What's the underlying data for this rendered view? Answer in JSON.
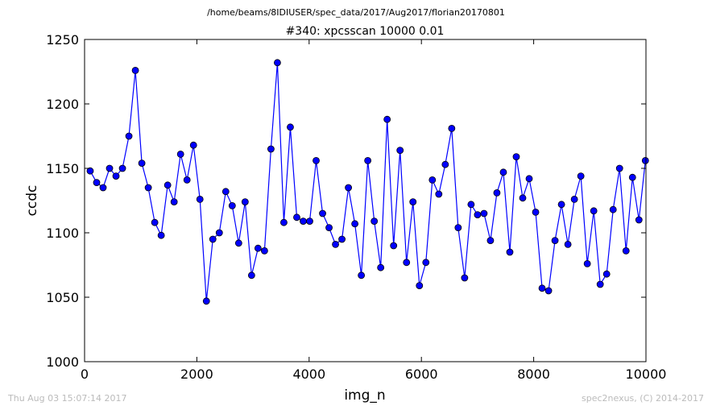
{
  "suptitle": "/home/beams/8IDIUSER/spec_data/2017/Aug2017/florian20170801",
  "footer": {
    "left": "Thu Aug 03 15:07:14 2017",
    "right": "spec2nexus, (C) 2014-2017"
  },
  "colors": {
    "series": "#0000ff",
    "marker_edge": "#000000",
    "axes": "#000000"
  },
  "chart_data": {
    "type": "line",
    "title": "#340: xpcsscan 10000 0.01",
    "xlabel": "img_n",
    "ylabel": "ccdc",
    "xlim": [
      0,
      10000
    ],
    "ylim": [
      1000,
      1250
    ],
    "xticks": [
      0,
      2000,
      4000,
      6000,
      8000,
      10000
    ],
    "yticks": [
      1000,
      1050,
      1100,
      1150,
      1200,
      1250
    ],
    "grid": false,
    "legend": "none",
    "series": [
      {
        "marker": "circle",
        "x": [
          100,
          215,
          330,
          445,
          560,
          675,
          790,
          905,
          1020,
          1135,
          1250,
          1365,
          1480,
          1595,
          1710,
          1825,
          1940,
          2055,
          2170,
          2285,
          2400,
          2515,
          2630,
          2745,
          2860,
          2975,
          3090,
          3205,
          3320,
          3435,
          3550,
          3665,
          3780,
          3895,
          4010,
          4125,
          4240,
          4355,
          4470,
          4585,
          4700,
          4815,
          4930,
          5045,
          5160,
          5275,
          5390,
          5505,
          5620,
          5735,
          5850,
          5965,
          6080,
          6195,
          6310,
          6425,
          6540,
          6655,
          6770,
          6885,
          7000,
          7115,
          7230,
          7345,
          7460,
          7575,
          7690,
          7805,
          7920,
          8035,
          8150,
          8265,
          8380,
          8495,
          8610,
          8725,
          8840,
          8955,
          9070,
          9185,
          9300,
          9415,
          9530,
          9645,
          9760,
          9875,
          9990
        ],
        "y": [
          1148,
          1139,
          1135,
          1150,
          1144,
          1150,
          1175,
          1226,
          1154,
          1135,
          1108,
          1098,
          1137,
          1124,
          1161,
          1141,
          1168,
          1126,
          1047,
          1095,
          1100,
          1132,
          1121,
          1092,
          1124,
          1067,
          1088,
          1086,
          1165,
          1232,
          1108,
          1182,
          1112,
          1109,
          1109,
          1156,
          1115,
          1104,
          1091,
          1095,
          1135,
          1107,
          1067,
          1156,
          1109,
          1073,
          1188,
          1090,
          1164,
          1077,
          1124,
          1059,
          1077,
          1141,
          1130,
          1153,
          1181,
          1104,
          1065,
          1122,
          1114,
          1115,
          1094,
          1131,
          1147,
          1085,
          1159,
          1127,
          1142,
          1116,
          1057,
          1055,
          1094,
          1122,
          1091,
          1126,
          1144,
          1076,
          1117,
          1060,
          1068,
          1118,
          1150,
          1086,
          1143,
          1110,
          1156
        ]
      }
    ]
  }
}
